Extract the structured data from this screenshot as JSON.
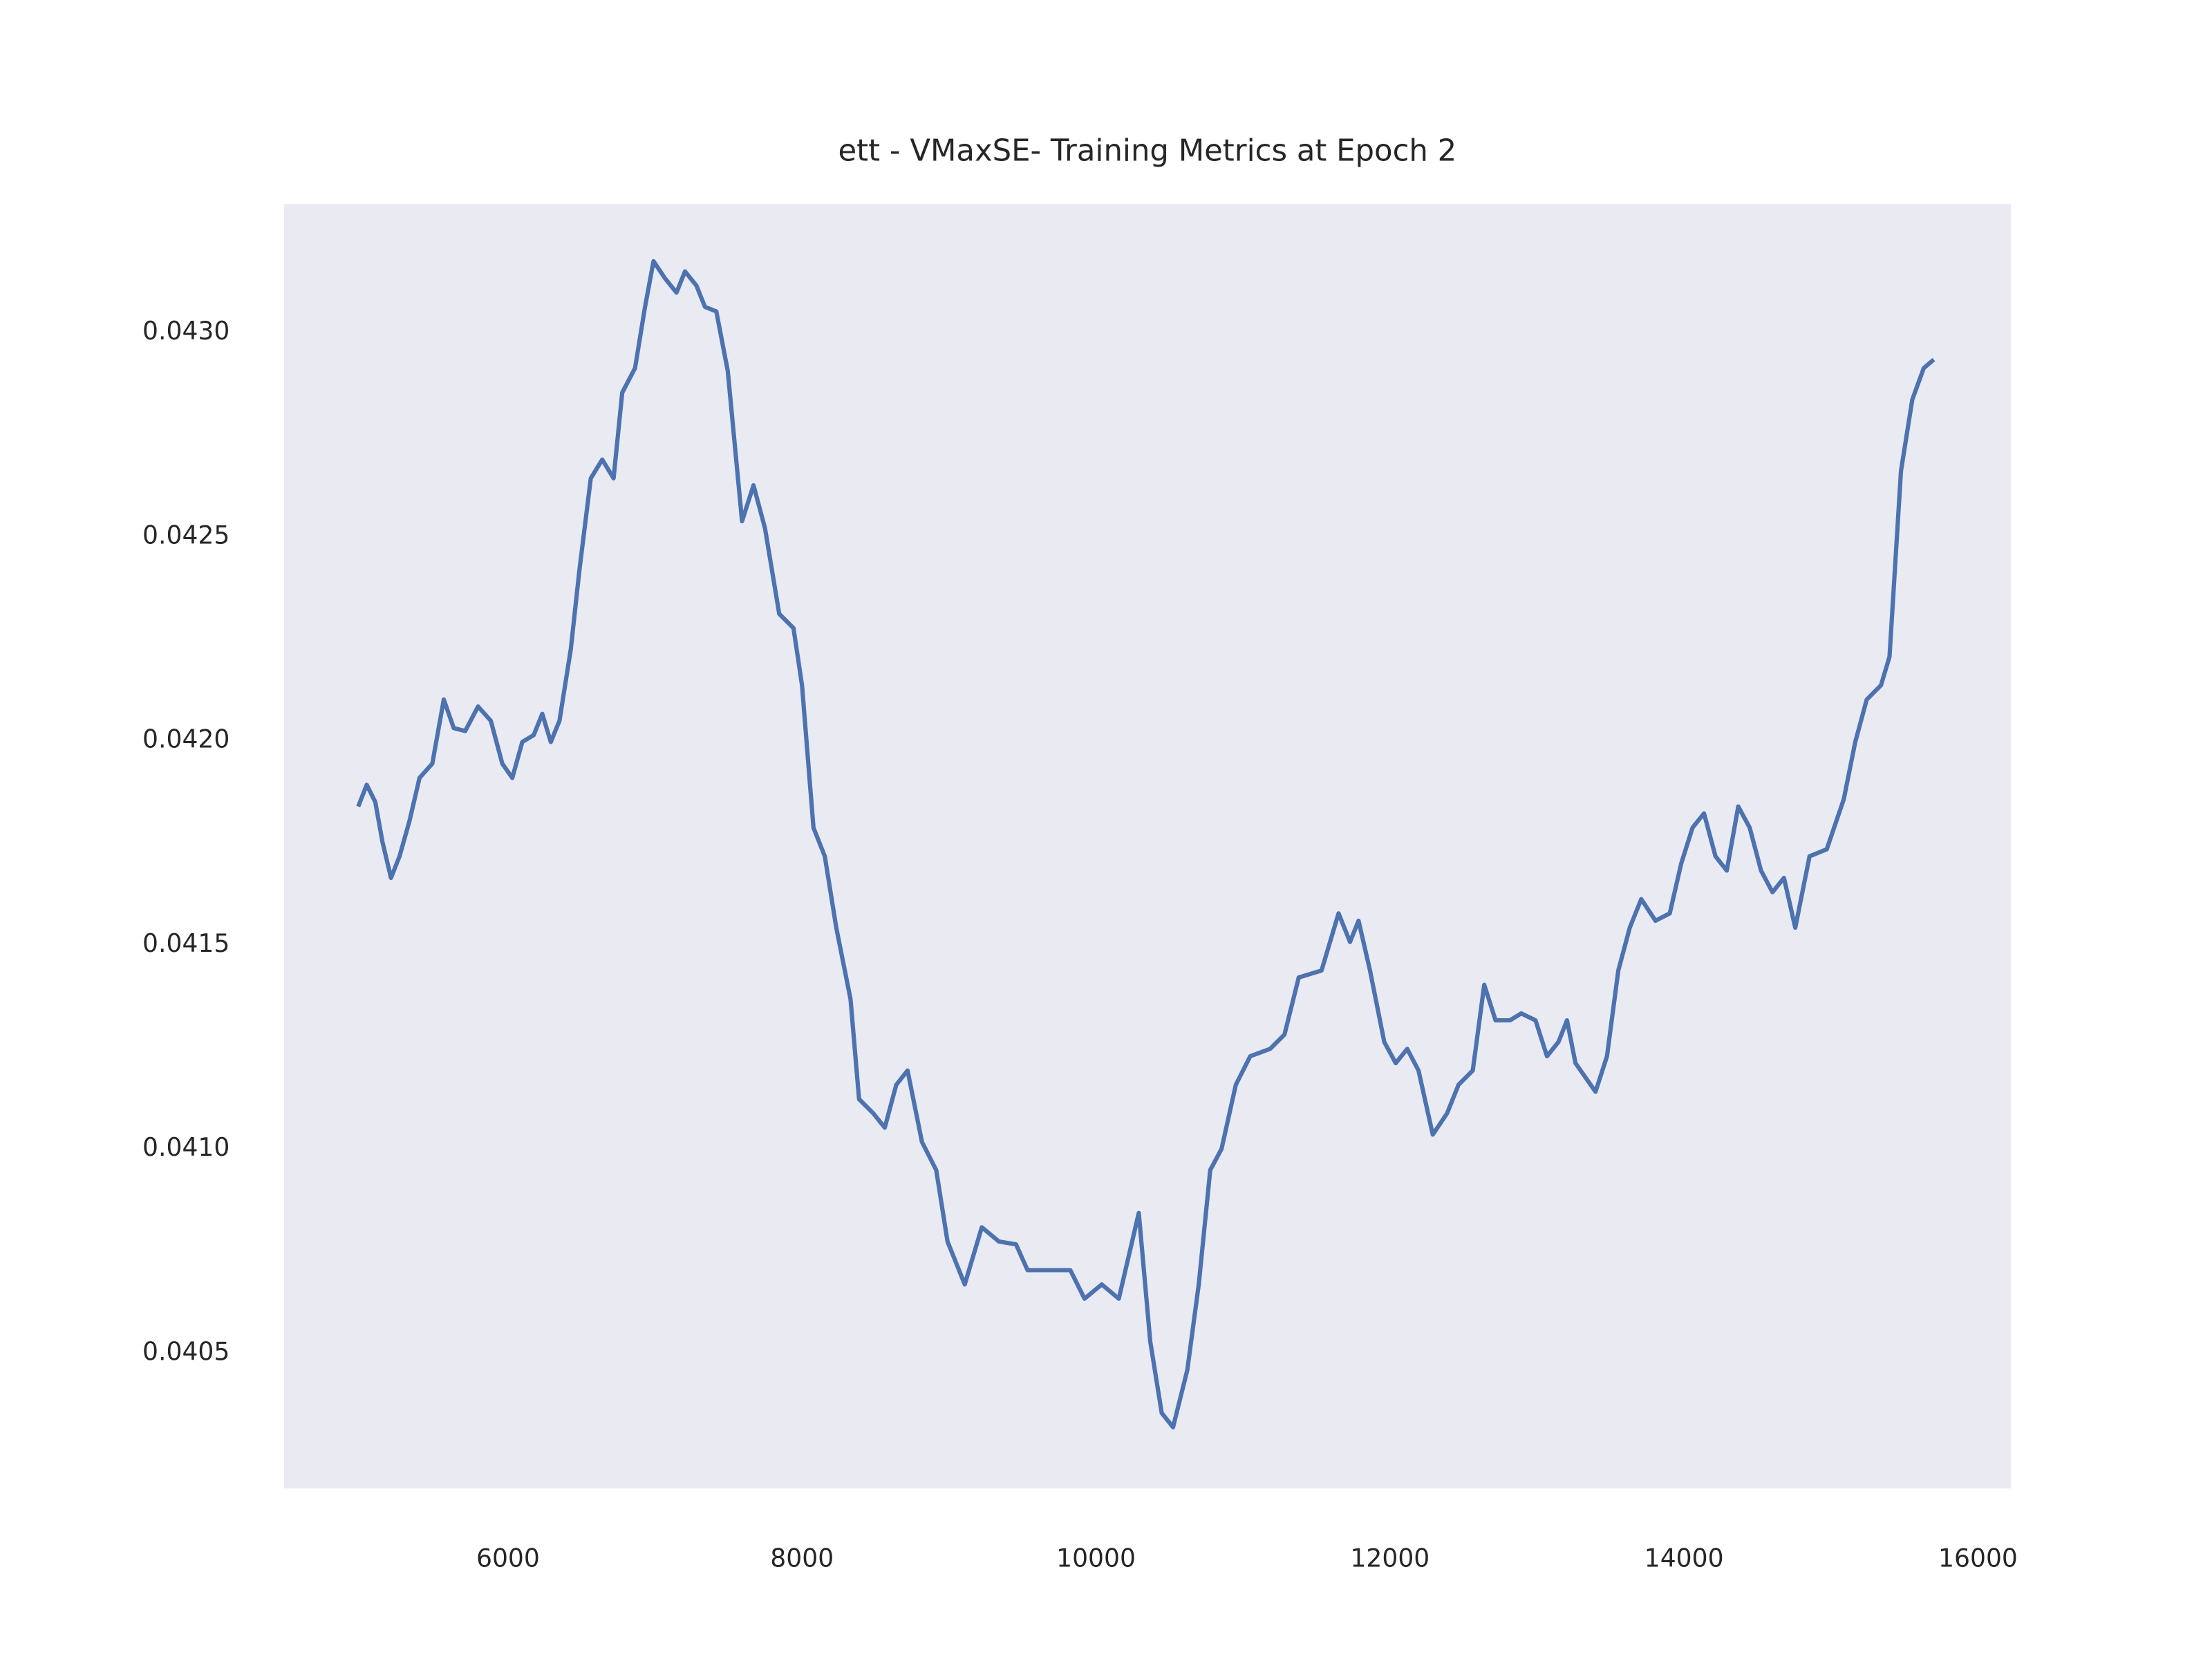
{
  "chart_data": {
    "type": "line",
    "title": "ett - VMaxSE- Training Metrics at Epoch 2",
    "x": [
      4981,
      5039,
      5097,
      5146,
      5204,
      5262,
      5330,
      5398,
      5485,
      5563,
      5631,
      5709,
      5796,
      5883,
      5961,
      6029,
      6097,
      6175,
      6233,
      6291,
      6350,
      6427,
      6485,
      6563,
      6641,
      6718,
      6777,
      6864,
      6932,
      6990,
      7068,
      7146,
      7204,
      7282,
      7340,
      7417,
      7495,
      7592,
      7670,
      7748,
      7845,
      7942,
      8000,
      8078,
      8155,
      8233,
      8330,
      8388,
      8485,
      8563,
      8641,
      8718,
      8816,
      8913,
      8990,
      9107,
      9223,
      9340,
      9456,
      9534,
      9689,
      9825,
      9922,
      10039,
      10155,
      10291,
      10369,
      10447,
      10524,
      10621,
      10699,
      10777,
      10854,
      10951,
      11049,
      11184,
      11282,
      11379,
      11534,
      11650,
      11728,
      11786,
      11864,
      11961,
      12039,
      12117,
      12194,
      12291,
      12388,
      12466,
      12563,
      12641,
      12718,
      12816,
      12893,
      12990,
      13068,
      13146,
      13204,
      13262,
      13398,
      13476,
      13553,
      13631,
      13709,
      13806,
      13903,
      13981,
      14058,
      14136,
      14214,
      14291,
      14369,
      14447,
      14524,
      14602,
      14680,
      14757,
      14854,
      14971,
      15087,
      15165,
      15243,
      15340,
      15398,
      15476,
      15553,
      15631,
      15699
    ],
    "series": [
      {
        "color": "#4c72b0",
        "values": [
          0.041839,
          0.041892,
          0.04185,
          0.041752,
          0.041664,
          0.041717,
          0.041804,
          0.041909,
          0.041944,
          0.042101,
          0.042031,
          0.042024,
          0.042084,
          0.042049,
          0.041944,
          0.041909,
          0.041997,
          0.042014,
          0.042066,
          0.041997,
          0.042049,
          0.042224,
          0.042416,
          0.042643,
          0.042689,
          0.042643,
          0.042853,
          0.042913,
          0.043063,
          0.043175,
          0.043133,
          0.043098,
          0.04315,
          0.043115,
          0.043063,
          0.043052,
          0.042906,
          0.042538,
          0.042626,
          0.042521,
          0.042311,
          0.042276,
          0.042136,
          0.041787,
          0.041717,
          0.041542,
          0.041367,
          0.041122,
          0.041087,
          0.041052,
          0.041157,
          0.041192,
          0.041017,
          0.040948,
          0.040773,
          0.040668,
          0.040808,
          0.040773,
          0.040766,
          0.040703,
          0.040703,
          0.040703,
          0.040633,
          0.040668,
          0.040633,
          0.040843,
          0.040528,
          0.040353,
          0.040318,
          0.040458,
          0.040668,
          0.040948,
          0.041,
          0.041157,
          0.041227,
          0.041245,
          0.04128,
          0.04142,
          0.041437,
          0.041577,
          0.041507,
          0.041559,
          0.041437,
          0.041262,
          0.04121,
          0.041245,
          0.041192,
          0.041035,
          0.041087,
          0.041157,
          0.041192,
          0.041402,
          0.041315,
          0.041315,
          0.041332,
          0.041315,
          0.041227,
          0.041262,
          0.041315,
          0.04121,
          0.04114,
          0.041227,
          0.041437,
          0.041542,
          0.041612,
          0.041559,
          0.041577,
          0.041699,
          0.041787,
          0.041822,
          0.041717,
          0.041682,
          0.041839,
          0.041787,
          0.041682,
          0.041629,
          0.041664,
          0.041542,
          0.041717,
          0.041734,
          0.041857,
          0.041997,
          0.042101,
          0.042136,
          0.042206,
          0.042661,
          0.042836,
          0.042913,
          0.042934
        ]
      }
    ],
    "xlim": [
      4476,
      16223
    ],
    "xticks": [
      6000,
      8000,
      10000,
      12000,
      14000,
      16000
    ],
    "ylim": [
      0.040168,
      0.043315
    ],
    "yticks": [
      0.0405,
      {
        "value": 0.041,
        "label": "0.0410"
      },
      0.0415,
      {
        "value": 0.042,
        "label": "0.0420"
      },
      0.0425,
      {
        "value": 0.043,
        "label": "0.0430"
      }
    ],
    "grid": false
  }
}
